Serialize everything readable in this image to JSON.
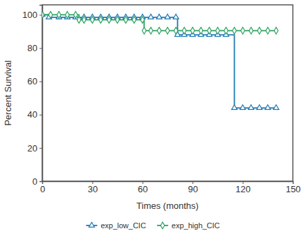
{
  "chart_data": {
    "type": "line",
    "x_label": "Times (months)",
    "y_label": "Percent Survival",
    "xlim": [
      0,
      150
    ],
    "xticks": [
      0,
      30,
      60,
      90,
      120,
      150
    ],
    "ylim": [
      0,
      106
    ],
    "yticks": [
      0,
      20,
      40,
      60,
      80,
      100
    ],
    "grid": false,
    "legend": "bottom",
    "line_style": "step",
    "series": [
      {
        "name": "exp_low_CIC",
        "color": "#1f78b4",
        "marker": "triangle",
        "x": [
          0,
          4,
          10,
          15,
          20,
          25,
          30,
          35,
          40,
          45,
          50,
          55,
          60,
          65,
          70,
          75,
          80,
          81,
          85,
          90,
          95,
          100,
          105,
          110,
          115,
          120,
          125,
          130,
          135,
          140
        ],
        "values": [
          100,
          98.5,
          98.5,
          98.5,
          98.5,
          98.5,
          98.5,
          98.5,
          98.5,
          98.5,
          98.5,
          98.5,
          98.5,
          98.5,
          98.5,
          98.5,
          98.5,
          88,
          88,
          88,
          88,
          88,
          88,
          88,
          44,
          44,
          44,
          44,
          44,
          44
        ]
      },
      {
        "name": "exp_high_CIC",
        "color": "#2ca25f",
        "marker": "diamond",
        "x": [
          0,
          5,
          10,
          15,
          20,
          22,
          25,
          30,
          35,
          40,
          45,
          50,
          55,
          60,
          61,
          65,
          70,
          75,
          80,
          85,
          90,
          95,
          100,
          105,
          110,
          115,
          120,
          125,
          130,
          135,
          140
        ],
        "values": [
          100,
          100,
          100,
          100,
          100,
          97,
          97,
          97,
          97,
          97,
          97,
          97,
          97,
          97,
          90.5,
          90.5,
          90.5,
          90.5,
          90.5,
          90.5,
          90.5,
          90.5,
          90.5,
          90.5,
          90.5,
          90.5,
          90.5,
          90.5,
          90.5,
          90.5,
          90.5
        ]
      }
    ]
  }
}
